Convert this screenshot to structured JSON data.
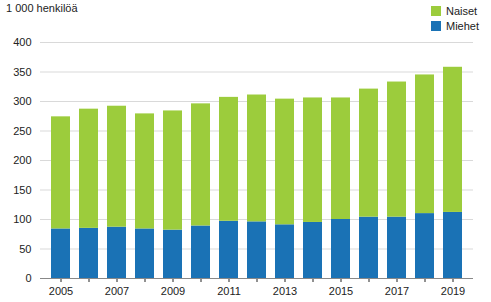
{
  "chart_data": {
    "type": "bar",
    "stacked": true,
    "y_label": "1 000 henkilöä",
    "categories": [
      "2005",
      null,
      "2007",
      null,
      "2009",
      null,
      "2011",
      null,
      "2013",
      null,
      "2015",
      null,
      "2017",
      null,
      "2019"
    ],
    "series": [
      {
        "name": "Miehet",
        "color": "#1a72b5",
        "values": [
          84,
          85,
          87,
          84,
          82,
          89,
          97,
          96,
          91,
          95,
          100,
          104,
          104,
          110,
          112
        ]
      },
      {
        "name": "Naiset",
        "color": "#9ccc3c",
        "values": [
          190,
          202,
          205,
          195,
          202,
          207,
          210,
          215,
          213,
          211,
          206,
          217,
          229,
          235,
          246
        ]
      }
    ],
    "ylim": [
      0,
      400
    ],
    "yticks": [
      0,
      50,
      100,
      150,
      200,
      250,
      300,
      350,
      400
    ],
    "grid": true,
    "legend": "top-right"
  }
}
